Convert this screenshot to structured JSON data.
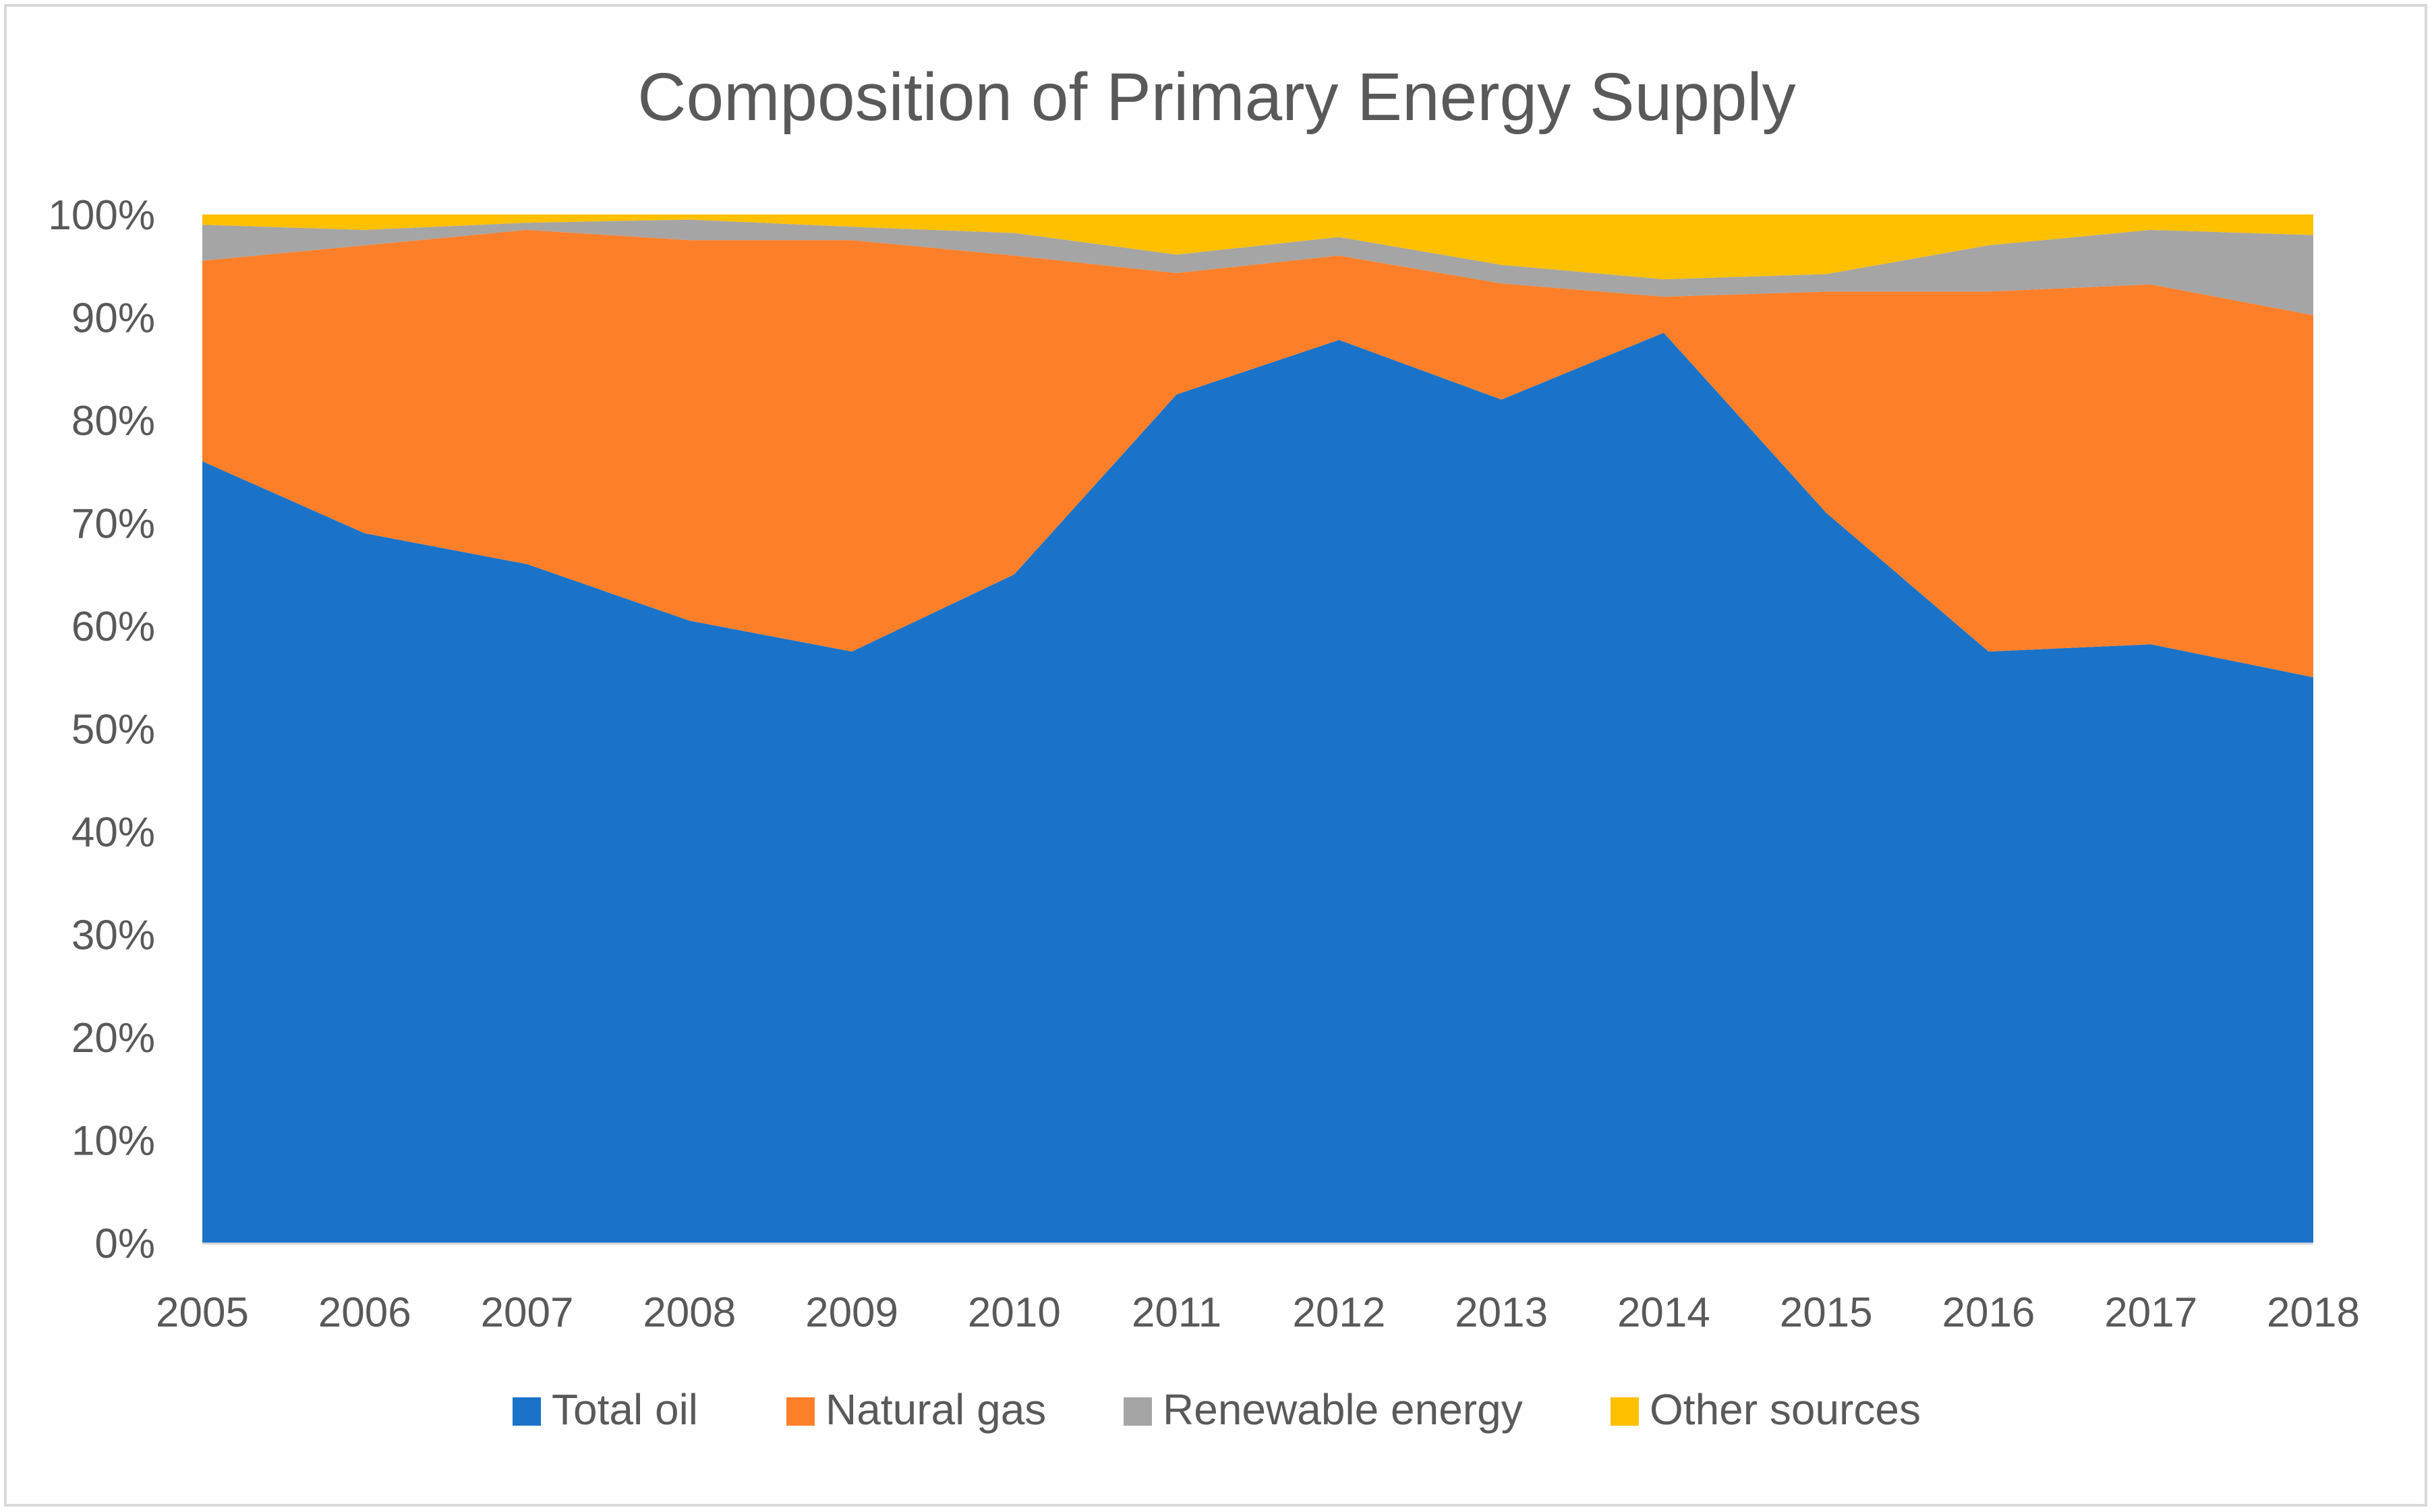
{
  "chart_data": {
    "type": "area",
    "stacked": true,
    "normalized": true,
    "title": "Composition of Primary Energy Supply",
    "xlabel": "",
    "ylabel": "",
    "ylim": [
      0,
      100
    ],
    "yticks": [
      "0%",
      "10%",
      "20%",
      "30%",
      "40%",
      "50%",
      "60%",
      "70%",
      "80%",
      "90%",
      "100%"
    ],
    "categories": [
      "2005",
      "2006",
      "2007",
      "2008",
      "2009",
      "2010",
      "2011",
      "2012",
      "2013",
      "2014",
      "2015",
      "2016",
      "2017",
      "2018"
    ],
    "legend_position": "bottom",
    "series": [
      {
        "name": "Total oil",
        "color": "#1a73c8",
        "values": [
          76,
          69,
          66,
          60.5,
          57.5,
          65,
          82.5,
          87.8,
          82,
          88.5,
          71,
          57.5,
          58.2,
          55
        ]
      },
      {
        "name": "Natural gas",
        "color": "#fe7f2a",
        "values": [
          19.5,
          28,
          32.5,
          37,
          40,
          31,
          11.8,
          8.2,
          11.3,
          3.5,
          21.5,
          35,
          35,
          35.2
        ]
      },
      {
        "name": "Renewable energy",
        "color": "#a5a5a5",
        "values": [
          3.5,
          1.5,
          0.7,
          2,
          1.3,
          2.2,
          1.8,
          1.8,
          1.8,
          1.7,
          1.7,
          4.5,
          5.3,
          7.8
        ]
      },
      {
        "name": "Other sources",
        "color": "#ffc000",
        "values": [
          1,
          1.5,
          0.8,
          0.5,
          1.2,
          1.8,
          3.9,
          2.2,
          4.9,
          6.3,
          5.8,
          3,
          1.5,
          2
        ]
      }
    ]
  }
}
